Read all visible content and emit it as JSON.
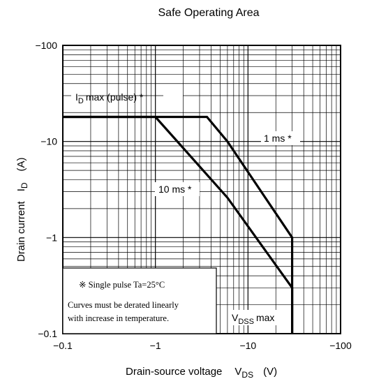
{
  "chart_data": {
    "type": "line",
    "title": "Safe Operating Area",
    "xlabel": "Drain-source voltage",
    "xlabel_symbol": "V",
    "xlabel_symbol_sub": "DS",
    "xlabel_unit": "(V)",
    "ylabel": "Drain current",
    "ylabel_symbol": "I",
    "ylabel_symbol_sub": "D",
    "ylabel_unit": "(A)",
    "x_scale": "log",
    "y_scale": "log",
    "xlim": [
      -0.1,
      -100
    ],
    "ylim": [
      -0.1,
      -100
    ],
    "x_ticks": [
      {
        "value": -0.1,
        "label": "−0.1"
      },
      {
        "value": -1,
        "label": "−1"
      },
      {
        "value": -10,
        "label": "−10"
      },
      {
        "value": -100,
        "label": "−100"
      }
    ],
    "y_ticks": [
      {
        "value": -0.1,
        "label": "−0.1"
      },
      {
        "value": -1,
        "label": "−1"
      },
      {
        "value": -10,
        "label": "−10"
      },
      {
        "value": -100,
        "label": "−100"
      }
    ],
    "grid": true,
    "series": [
      {
        "label": "1 ms *",
        "x": [
          -0.1,
          -3.6,
          -6,
          -30,
          -30
        ],
        "y": [
          -18,
          -18,
          -10,
          -1,
          -0.1
        ]
      },
      {
        "label": "10 ms *",
        "x": [
          -0.1,
          -1,
          -6,
          -30,
          -30
        ],
        "y": [
          -18,
          -18,
          -2.6,
          -0.3,
          -0.1
        ]
      }
    ],
    "annotations": {
      "id_max": {
        "text": "max (pulse) *",
        "prefix": "I",
        "prefix_sub": "D"
      },
      "one_ms": "1 ms *",
      "ten_ms": "10 ms *",
      "vdss": {
        "prefix": "V",
        "prefix_sub": "DSS",
        "suffix": "max"
      }
    },
    "note": {
      "line1": "※ Single pulse Ta=25°C",
      "line2": "Curves must be derated linearly",
      "line3": "with increase in temperature."
    }
  }
}
